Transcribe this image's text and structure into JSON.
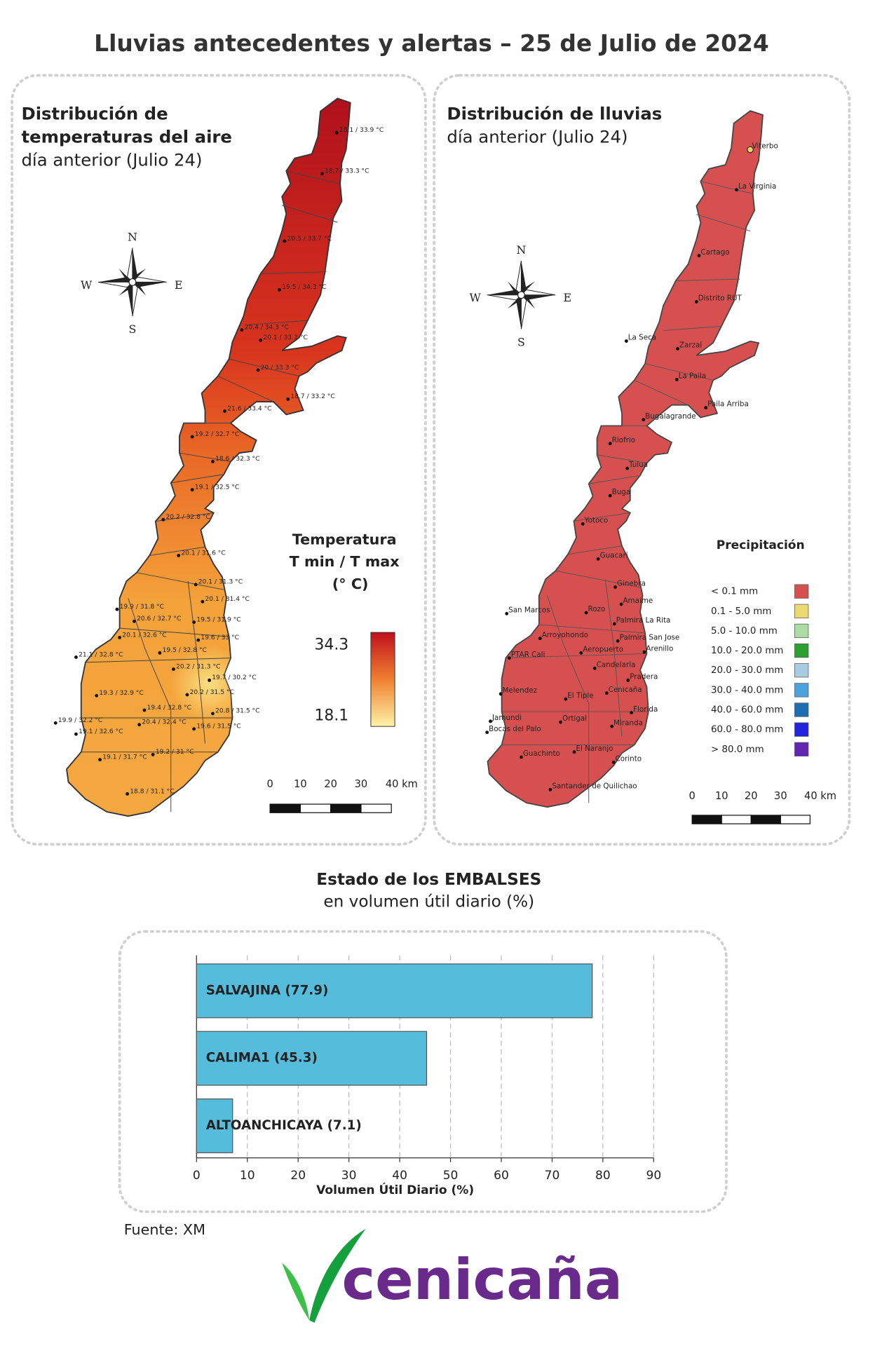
{
  "title": "Lluvias antecedentes y alertas – 25 de Julio de 2024",
  "temperature_map": {
    "title": [
      "Distribución de",
      "temperaturas del aire"
    ],
    "subtitle": "día anterior (Julio 24)",
    "compass": [
      "N",
      "E",
      "S",
      "W"
    ],
    "stations": [
      "18.1 / 33.9 °C",
      "18.7 / 33.3 °C",
      "20.5 / 33.7 °C",
      "19.5 / 34.3 °C",
      "20.4 / 34.3 °C",
      "20.1 / 33.3 °C",
      "20 / 33.3 °C",
      "18.7 / 33.2 °C",
      "21.6 / 33.4 °C",
      "19.2 / 32.7 °C",
      "18.6 / 32.3 °C",
      "19.1 / 32.5 °C",
      "20.2 / 32.8 °C",
      "20.1 / 31.6 °C",
      "20.1 / 31.3 °C",
      "20.1 / 31.4 °C",
      "19.9 / 31.8 °C",
      "20.6 / 32.7 °C",
      "19.5 / 31.9 °C",
      "20.1 / 32.6 °C",
      "19.6 / 33 °C",
      "21.1 / 32.8 °C",
      "19.5 / 32.8 °C",
      "20.2 / 31.3 °C",
      "19.7 / 30.2 °C",
      "19.3 / 32.9 °C",
      "20.2 / 31.5 °C",
      "19.4 / 32.8 °C",
      "20.8 / 31.5 °C",
      "19.9 / 32.2 °C",
      "20.4 / 32.4 °C",
      "19.6 / 31.5 °C",
      "19.1 / 32.6 °C",
      "19.1 / 31.7 °C",
      "19.2 / 31 °C",
      "18.8 / 31.1 °C"
    ],
    "legend": {
      "title": [
        "Temperatura",
        "T min / T max",
        "(° C)"
      ],
      "max": 34.3,
      "min": 18.1
    },
    "scale_labels": [
      "0",
      "10",
      "20",
      "30",
      "40 km"
    ]
  },
  "rain_map": {
    "title": "Distribución de lluvias",
    "subtitle": "día anterior (Julio 24)",
    "compass": [
      "N",
      "E",
      "S",
      "W"
    ],
    "stations": [
      "Viterbo",
      "La Virginia",
      "Cartago",
      "Distrito RUT",
      "La Seca",
      "Zarzal",
      "La Paila",
      "Paila Arriba",
      "Bugalagrande",
      "Riofrio",
      "Tulua",
      "Buga",
      "Yotoco",
      "Guacari",
      "Ginebra",
      "San Marcos",
      "Amaime",
      "Rozo",
      "Palmira La Rita",
      "Palmira San Jose",
      "Arroyohondo",
      "Aeropuerto",
      "Arenillo",
      "PTAR Cali",
      "Candelaria",
      "Pradera",
      "Melendez",
      "Cenicaña",
      "El Tiple",
      "Florida",
      "Ortigal",
      "Miranda",
      "Jamundi",
      "Bocas del Palo",
      "El Naranjo",
      "Guachinto",
      "Corinto",
      "Santander de Quilichao"
    ],
    "legend": {
      "title": "Precipitación",
      "items": [
        {
          "label": "< 0.1 mm",
          "color": "#d65050"
        },
        {
          "label": "0.1 - 5.0 mm",
          "color": "#ecd873"
        },
        {
          "label": "5.0 - 10.0 mm",
          "color": "#acdca4"
        },
        {
          "label": "10.0 - 20.0 mm",
          "color": "#2ea032"
        },
        {
          "label": "20.0 - 30.0 mm",
          "color": "#a8cce2"
        },
        {
          "label": "30.0 - 40.0 mm",
          "color": "#4ca2dc"
        },
        {
          "label": "40.0 - 60.0 mm",
          "color": "#1e6eb4"
        },
        {
          "label": "60.0 - 80.0 mm",
          "color": "#2323e0"
        },
        {
          "label": "> 80.0 mm",
          "color": "#6424b4"
        }
      ]
    },
    "scale_labels": [
      "0",
      "10",
      "20",
      "30",
      "40 km"
    ]
  },
  "chart_data": {
    "type": "bar",
    "orientation": "horizontal",
    "title": "Estado de los EMBALSES",
    "subtitle": "en volumen útil diario (%)",
    "categories": [
      "SALVAJINA (77.9)",
      "CALIMA1 (45.3)",
      "ALTOANCHICAYA (7.1)"
    ],
    "values": [
      77.9,
      45.3,
      7.1
    ],
    "color": "#56bcdc",
    "xlabel": "Volumen Útil Diario (%)",
    "xlim": [
      0,
      90
    ],
    "xticks": [
      0,
      10,
      20,
      30,
      40,
      50,
      60,
      70,
      80,
      90
    ],
    "grid": true
  },
  "source": "Fuente: XM",
  "logo": "cenicaña"
}
